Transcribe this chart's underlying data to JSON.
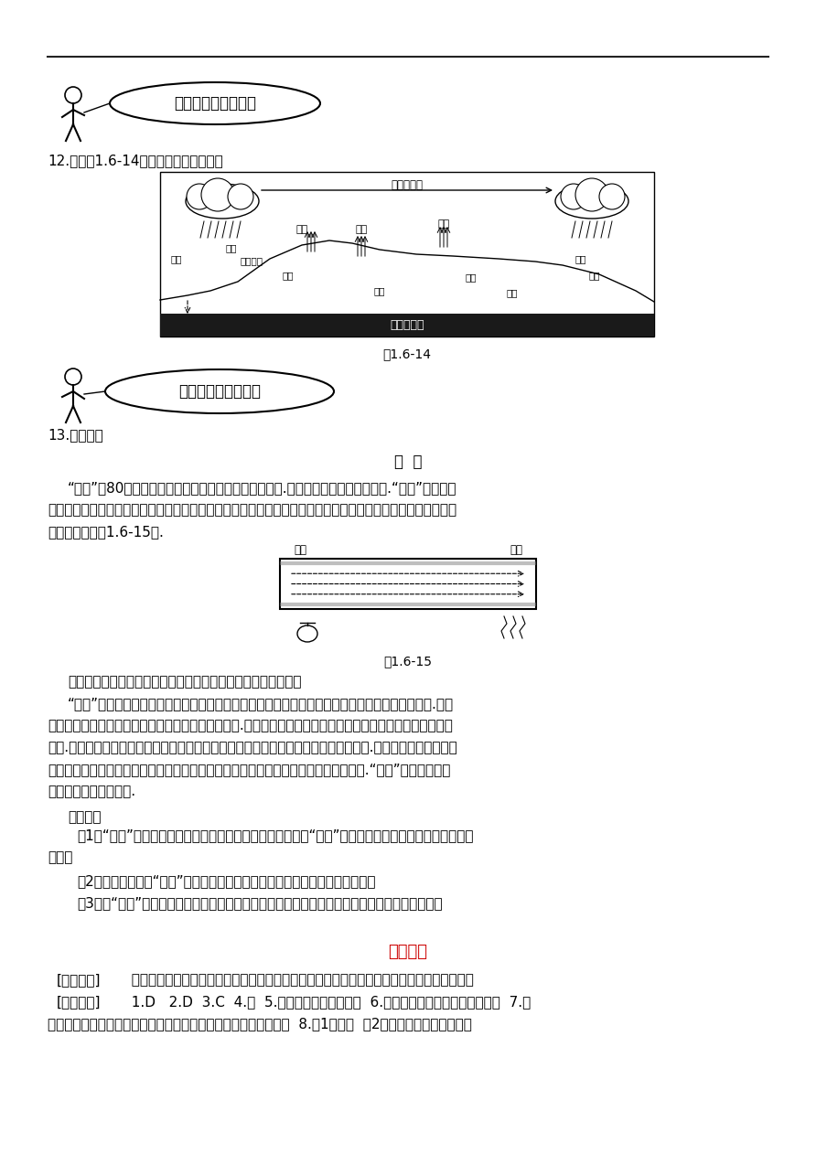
{
  "bg_color": "#ffffff",
  "text_color": "#000000",
  "red_color": "#cc0000",
  "line_color": "#333333",
  "title_section1": "想一想，如何探究？",
  "q12": "12.观察图1.6-14，你能得到哪些信息？",
  "fig14_caption": "图1.6-14",
  "title_section2": "读一读，你有何收获",
  "q13": "13.阅读材料",
  "article_title": "热  管",
  "article_line1": "“热管”是80年代研制出来的一种导热本领非常大的装置.它比铜的导热本领大上千倍.“热管”的结构并",
  "article_line2": "不复杂，它是一根两端封闭的金属管，管内壁衬了一层多孔的材料，叫做吸收芯，吸收芯中充有酒精或其他容易",
  "article_line3": "汽化的液体（图1.6-15）.",
  "fig15_caption": "图1.6-15",
  "fig15_hot": "热端",
  "fig15_cold": "冷端",
  "para2_indent": "当管的一端受热时，热量会很快传到另一端，这是什么道理呢？",
  "para3_line1": "“热管”的一端受热时，这一端吸收芯中的液体因吸热而汽化，蒸汽沿着管子由受热一端跑到另一端.另一",
  "para3_line2": "端由于未受热，温度低，蒸汽就在这一端放热而液化.冷凝的液体被吸收芯吸附，通过毛细作用又回到了受热的",
  "para3_line3": "一端.如此往复循环，热管里的液体不断地通过汽化和液化，把热量从一端传递到另一端.液体在汽化和气体在液",
  "para3_line4": "化时要分别吸收和放出大量的热，热管正是利用了这一性质，达到高效传递热量的目的.“热管”在一些高新技",
  "para3_line5": "术领域发挥着重要作用.",
  "q_ask": "请回答：",
  "q1_line1": "（1）“热管”被加热的那一端的温度为什么不会很快升上去？“热管”没有被加热的那一端的温度为什么会",
  "q1_line2": "升高？",
  "q2": "（2）请比较一下，“热管”的工作原理和电冰箱的工作原理有哪些相似的地方？",
  "q3": "（3）用“热管”可以很快地把一个物体内部产生的热量散发出来，你能想出它的一个应用实例吗？",
  "ans_title": "参考答案",
  "ans1_bracket": "[探究体验]",
  "ans1_text": "  液化；有；小水珠；水蒸气遇冷液化；无；无小水珠；蒸发皿温度高，水蒸气没有液化；遇冷",
  "ans2_bracket": "[快乐套餐]",
  "ans2_text": "  1.D   2.D  3.C  4.略  5.汽，液；放；吸；降低  6.增大气压提高沸点；熔点；爆炸  7.水",
  "ans2_line2": "蒸气液化；水汽化时吸收大量的热，不致使发射台底温度升得太高  8.（1）沸点  （2）先吸热汽化后放热液化",
  "wc_shuizheng": "水蒸气迁移",
  "wc_zhengfa1": "蒸发",
  "wc_zhengfa2": "蒸发",
  "wc_zhengfa3": "蒸发",
  "wc_jiangshui1": "降水",
  "wc_dibiaojingliu": "地表径流",
  "wc_shilou": "渗漏",
  "wc_hupo": "湖泊",
  "wc_ludi": "陆地",
  "wc_heliu": "河流",
  "wc_huiliu": "回流",
  "wc_jiangshui2": "降水",
  "wc_haiyang": "海洋",
  "wc_dixia": "地下水迁移"
}
